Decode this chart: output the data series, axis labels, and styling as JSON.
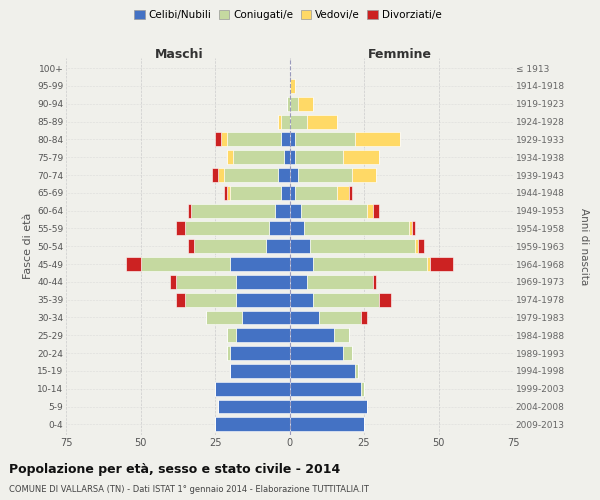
{
  "age_groups": [
    "0-4",
    "5-9",
    "10-14",
    "15-19",
    "20-24",
    "25-29",
    "30-34",
    "35-39",
    "40-44",
    "45-49",
    "50-54",
    "55-59",
    "60-64",
    "65-69",
    "70-74",
    "75-79",
    "80-84",
    "85-89",
    "90-94",
    "95-99",
    "100+"
  ],
  "birth_years": [
    "2009-2013",
    "2004-2008",
    "1999-2003",
    "1994-1998",
    "1989-1993",
    "1984-1988",
    "1979-1983",
    "1974-1978",
    "1969-1973",
    "1964-1968",
    "1959-1963",
    "1954-1958",
    "1949-1953",
    "1944-1948",
    "1939-1943",
    "1934-1938",
    "1929-1933",
    "1924-1928",
    "1919-1923",
    "1914-1918",
    "≤ 1913"
  ],
  "maschi": {
    "celibi": [
      25,
      24,
      25,
      20,
      20,
      18,
      16,
      18,
      18,
      20,
      8,
      7,
      5,
      3,
      4,
      2,
      3,
      0,
      0,
      0,
      0
    ],
    "coniugati": [
      0,
      0,
      0,
      0,
      1,
      3,
      12,
      17,
      20,
      30,
      24,
      28,
      28,
      17,
      18,
      17,
      18,
      3,
      1,
      0,
      0
    ],
    "vedovi": [
      0,
      0,
      0,
      0,
      0,
      0,
      0,
      0,
      0,
      0,
      0,
      0,
      0,
      1,
      2,
      2,
      2,
      1,
      0,
      0,
      0
    ],
    "divorziati": [
      0,
      0,
      0,
      0,
      0,
      0,
      0,
      3,
      2,
      5,
      2,
      3,
      1,
      1,
      2,
      0,
      2,
      0,
      0,
      0,
      0
    ]
  },
  "femmine": {
    "nubili": [
      25,
      26,
      24,
      22,
      18,
      15,
      10,
      8,
      6,
      8,
      7,
      5,
      4,
      2,
      3,
      2,
      2,
      0,
      0,
      0,
      0
    ],
    "coniugate": [
      0,
      0,
      1,
      1,
      3,
      5,
      14,
      22,
      22,
      38,
      35,
      35,
      22,
      14,
      18,
      16,
      20,
      6,
      3,
      0,
      0
    ],
    "vedove": [
      0,
      0,
      0,
      0,
      0,
      0,
      0,
      0,
      0,
      1,
      1,
      1,
      2,
      4,
      8,
      12,
      15,
      10,
      5,
      2,
      0
    ],
    "divorziate": [
      0,
      0,
      0,
      0,
      0,
      0,
      2,
      4,
      1,
      8,
      2,
      1,
      2,
      1,
      0,
      0,
      0,
      0,
      0,
      0,
      0
    ]
  },
  "colors": {
    "celibi": "#4472c4",
    "coniugati": "#c5d9a0",
    "vedovi": "#ffd966",
    "divorziati": "#cc2222"
  },
  "xlim": 75,
  "title": "Popolazione per età, sesso e stato civile - 2014",
  "subtitle": "COMUNE DI VALLARSA (TN) - Dati ISTAT 1° gennaio 2014 - Elaborazione TUTTITALIA.IT",
  "ylabel_left": "Fasce di età",
  "ylabel_right": "Anni di nascita",
  "xlabel_left": "Maschi",
  "xlabel_right": "Femmine",
  "legend_labels": [
    "Celibi/Nubili",
    "Coniugati/e",
    "Vedovi/e",
    "Divorziati/e"
  ],
  "background_color": "#f0f0eb",
  "grid_color": "#cccccc"
}
